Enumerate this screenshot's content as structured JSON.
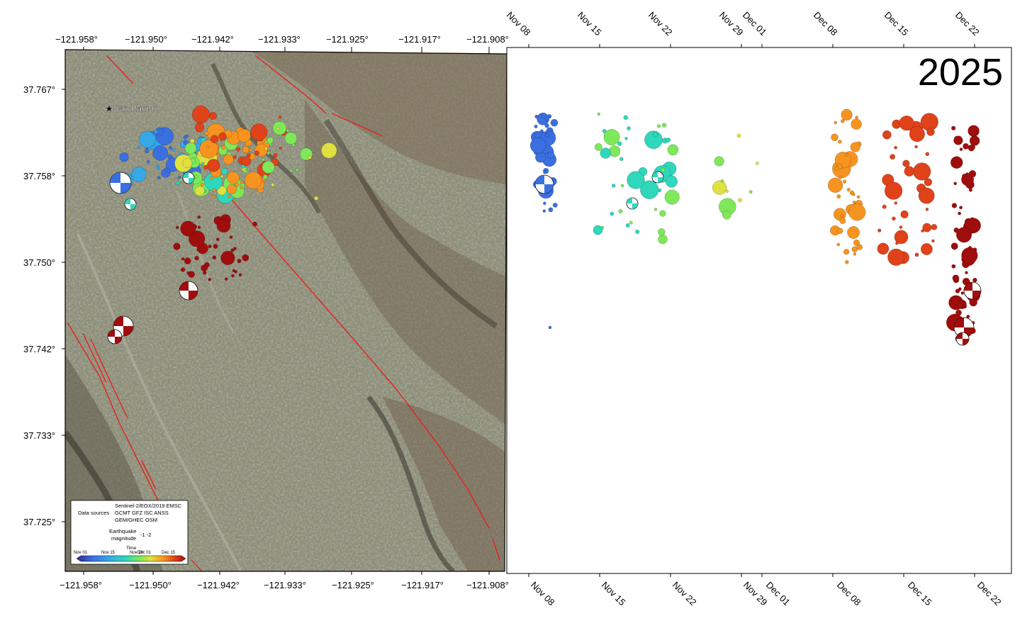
{
  "title": "2025",
  "map": {
    "lon_ticks": [
      "−121.958°",
      "−121.950°",
      "−121.942°",
      "−121.933°",
      "−121.925°",
      "−121.917°",
      "−121.908°"
    ],
    "lat_ticks": [
      "37.767°",
      "37.758°",
      "37.750°",
      "37.742°",
      "37.733°",
      "37.725°"
    ],
    "place_label": "San Ramon",
    "legend": {
      "sources_label": "Data sources",
      "sources_text": [
        "Sentinel-2/EOX/2019 EMSC",
        "GCMT GFZ ISC ANSS",
        "GEM/GHEC OSM"
      ],
      "magnitude_label": [
        "Earthquake",
        "magnitude"
      ],
      "magnitude_range": "-1 -2",
      "time_label": "Time",
      "colorbar_ticks": [
        "Nov 01",
        "Nov 15",
        "Nov 29",
        "Dec 01",
        "Dec 15"
      ]
    }
  },
  "timeline": {
    "date_ticks": [
      "Nov 08",
      "Nov 15",
      "Nov 22",
      "Nov 29",
      "Dec 01",
      "Dec 08",
      "Dec 15",
      "Dec 22"
    ]
  },
  "colors": {
    "fault": "#e8211f",
    "cmap": [
      "#2c2d8f",
      "#3a6fe0",
      "#36a8e6",
      "#2fd7bb",
      "#7ee85a",
      "#e0e041",
      "#f7941f",
      "#e0421a",
      "#a00d0d"
    ]
  }
}
